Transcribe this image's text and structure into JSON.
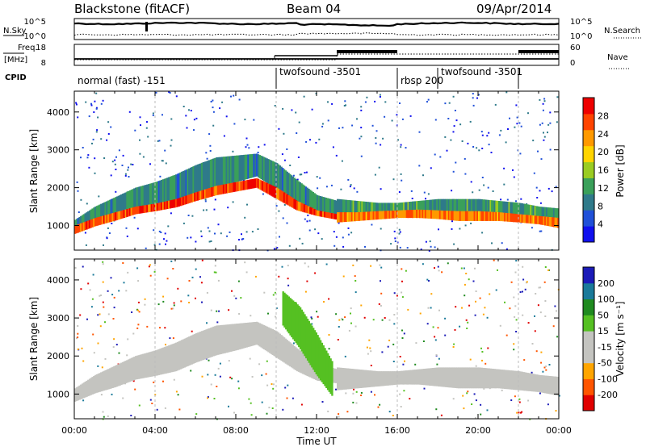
{
  "header": {
    "station": "Blackstone (fitACF)",
    "beam": "Beam 04",
    "date": "09/Apr/2014"
  },
  "summary": {
    "nsky_label": "N.Sky",
    "nsearch_label": "N.Search",
    "count_ticks": [
      "10^5",
      "10^0"
    ],
    "freq_label": "Freq.",
    "freq_unit": "[MHz]",
    "freq_ticks": [
      "18",
      "8"
    ],
    "nave_label": "Nave",
    "nave_ticks": [
      "60",
      "0"
    ],
    "cpid_label": "CPID",
    "cpid_segments": [
      {
        "label": "normal (fast) -151",
        "start_h": 0,
        "end_h": 10
      },
      {
        "label": "twofsound -3501",
        "start_h": 10,
        "end_h": 16
      },
      {
        "label": "rbsp 200",
        "start_h": 16,
        "end_h": 18
      },
      {
        "label": "twofsound -3501",
        "start_h": 18,
        "end_h": 22
      },
      {
        "label": "",
        "start_h": 22,
        "end_h": 24
      }
    ]
  },
  "colors": {
    "power": [
      "#1010ee",
      "#2050d8",
      "#2f7a8a",
      "#3aa05a",
      "#9acc22",
      "#ffd400",
      "#ff9900",
      "#ff4400",
      "#ee0000"
    ],
    "velocity": [
      "#e00000",
      "#ff5500",
      "#ffa500",
      "#c4c4c0",
      "#c4c4c0",
      "#55c022",
      "#1f8a1f",
      "#1a7a9a",
      "#1b1bb8"
    ]
  },
  "chart_data": [
    {
      "type": "heatmap",
      "name": "power",
      "xlabel": "",
      "ylabel": "Slant Range [km]",
      "xlim": [
        0,
        24
      ],
      "ylim": [
        350,
        4550
      ],
      "yticks": [
        1000,
        2000,
        3000,
        4000
      ],
      "colorbar_label": "Power [dB]",
      "colorbar_ticks": [
        "4",
        "8",
        "12",
        "16",
        "20",
        "24",
        "28"
      ],
      "bands": [
        {
          "from_h": 0.0,
          "to_h": 13.0,
          "lower_km": [
            800,
            1020,
            1180,
            1380,
            1480,
            1600,
            1830,
            2020,
            2150,
            2300,
            1950,
            1600,
            1350,
            1280
          ],
          "upper_km": [
            1150,
            1500,
            1750,
            2000,
            2150,
            2350,
            2600,
            2800,
            2850,
            2900,
            2650,
            2200,
            1800,
            1650
          ],
          "level": 10
        },
        {
          "from_h": 0.0,
          "to_h": 13.0,
          "lower_km": [
            780,
            980,
            1130,
            1300,
            1380,
            1480,
            1650,
            1800,
            1900,
            2000,
            1700,
            1400,
            1250,
            1150
          ],
          "upper_km": [
            1000,
            1200,
            1350,
            1500,
            1580,
            1700,
            1880,
            2050,
            2150,
            2250,
            2000,
            1650,
            1400,
            1300
          ],
          "level": 27
        },
        {
          "from_h": 13.0,
          "to_h": 24.0,
          "lower_km": [
            1100,
            1150,
            1200,
            1250,
            1250,
            1200,
            1150,
            1150,
            1150,
            1100,
            1050,
            950
          ],
          "upper_km": [
            1700,
            1650,
            1600,
            1600,
            1650,
            1700,
            1700,
            1700,
            1650,
            1600,
            1500,
            1450
          ],
          "level": 11
        },
        {
          "from_h": 13.0,
          "to_h": 24.0,
          "lower_km": [
            1080,
            1120,
            1160,
            1200,
            1200,
            1170,
            1120,
            1120,
            1120,
            1080,
            1030,
            930
          ],
          "upper_km": [
            1350,
            1350,
            1380,
            1400,
            1420,
            1400,
            1380,
            1380,
            1350,
            1300,
            1250,
            1200
          ],
          "level": 24
        }
      ]
    },
    {
      "type": "heatmap",
      "name": "velocity",
      "xlabel": "Time UT",
      "ylabel": "Slant Range [km]",
      "xlim": [
        0,
        24
      ],
      "ylim": [
        350,
        4550
      ],
      "xticks": [
        "00:00",
        "04:00",
        "08:00",
        "12:00",
        "16:00",
        "20:00",
        "00:00"
      ],
      "yticks": [
        1000,
        2000,
        3000,
        4000
      ],
      "colorbar_label": "Velocity [m s⁻¹]",
      "colorbar_ticks": [
        "-200",
        "-100",
        "-50",
        "-15",
        "15",
        "50",
        "100",
        "200"
      ],
      "bands": [
        {
          "from_h": 0.0,
          "to_h": 13.0,
          "lower_km": [
            800,
            1020,
            1180,
            1380,
            1480,
            1600,
            1830,
            2020,
            2150,
            2300,
            1950,
            1600,
            1350,
            1280
          ],
          "upper_km": [
            1150,
            1500,
            1750,
            2000,
            2150,
            2350,
            2600,
            2800,
            2850,
            2900,
            2650,
            2200,
            1800,
            1650
          ],
          "level": 0
        },
        {
          "from_h": 13.0,
          "to_h": 24.0,
          "lower_km": [
            1100,
            1150,
            1200,
            1250,
            1250,
            1200,
            1150,
            1150,
            1150,
            1100,
            1050,
            950
          ],
          "upper_km": [
            1700,
            1650,
            1600,
            1600,
            1650,
            1700,
            1700,
            1700,
            1650,
            1600,
            1500,
            1450
          ],
          "level": 0
        },
        {
          "from_h": 10.3,
          "to_h": 12.8,
          "lower_km": [
            2800,
            2200,
            1500,
            900
          ],
          "upper_km": [
            3700,
            3300,
            2600,
            1800
          ],
          "level": 30
        }
      ]
    }
  ]
}
